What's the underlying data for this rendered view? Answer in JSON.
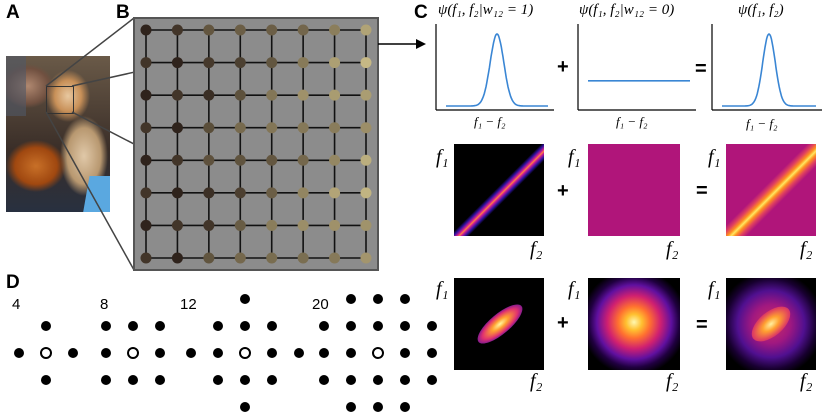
{
  "panels": {
    "a": "A",
    "b": "B",
    "c": "C",
    "d": "D"
  },
  "panel_c": {
    "titles": [
      "ψ(f₁, f₂|w₁₂ = 1)",
      "ψ(f₁, f₂|w₁₂ = 0)",
      "ψ(f₁, f₂)"
    ],
    "xlabel": "f₁ − f₂",
    "ops": {
      "plus": "+",
      "equals": "="
    },
    "heatmap_axis": {
      "y": "f₁",
      "x": "f₂"
    },
    "curve_color": "#3a86d4"
  },
  "panel_d": {
    "counts": [
      "4",
      "8",
      "12",
      "20"
    ]
  },
  "chart_data": [
    {
      "type": "line",
      "series": [
        {
          "values": "gaussian peak near center"
        }
      ]
    }
  ]
}
